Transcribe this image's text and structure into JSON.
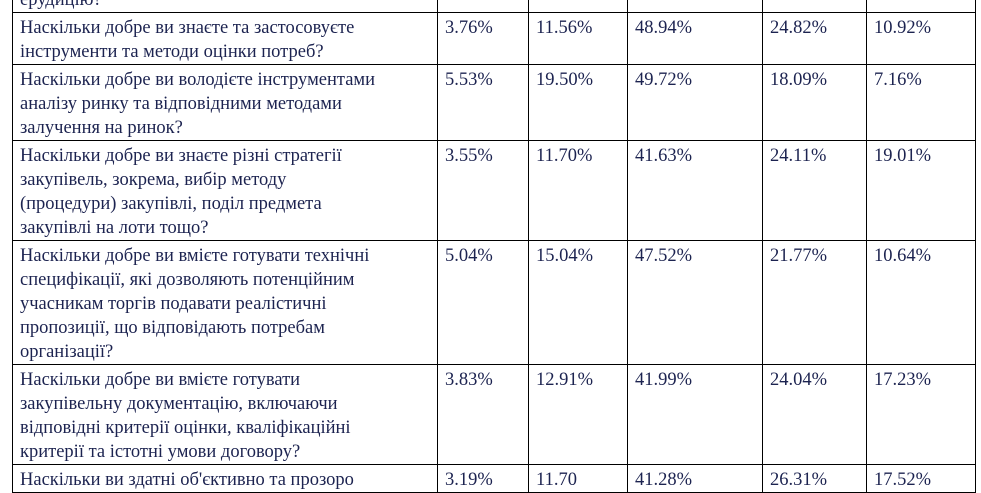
{
  "table": {
    "rows": [
      [
        [
          "ерудицію?"
        ],
        "",
        "",
        "",
        "",
        ""
      ],
      [
        [
          "Наскільки добре ви знаєте та застосовуєте",
          "інструменти та методи оцінки потреб?"
        ],
        "3.76%",
        "11.56%",
        "48.94%",
        "24.82%",
        "10.92%"
      ],
      [
        [
          "Наскільки добре ви володієте інструментами",
          "аналізу ринку та відповідними методами",
          "залучення на ринок?"
        ],
        "5.53%",
        "19.50%",
        "49.72%",
        "18.09%",
        "7.16%"
      ],
      [
        [
          "Наскільки добре ви знаєте різні стратегії",
          "закупівель, зокрема, вибір методу",
          "(процедури) закупівлі, поділ предмета",
          "закупівлі на лоти тощо?"
        ],
        "3.55%",
        "11.70%",
        "41.63%",
        "24.11%",
        "19.01%"
      ],
      [
        [
          "Наскільки добре ви вмієте готувати технічні",
          "специфікації, які дозволяють потенційним",
          "учасникам торгів подавати реалістичні",
          "пропозиції, що відповідають потребам",
          "організації?"
        ],
        "5.04%",
        "15.04%",
        "47.52%",
        "21.77%",
        "10.64%"
      ],
      [
        [
          "Наскільки добре ви вмієте готувати",
          "закупівельну документацію, включаючи",
          "відповідні критерії оцінки, кваліфікаційні",
          "критерії та істотні умови договору?"
        ],
        "3.83%",
        "12.91%",
        "41.99%",
        "24.04%",
        "17.23%"
      ],
      [
        [
          "Наскільки ви здатні об'єктивно та прозоро"
        ],
        "3.19%",
        "11.70",
        "41.28%",
        "26.31%",
        "17.52%"
      ]
    ]
  }
}
